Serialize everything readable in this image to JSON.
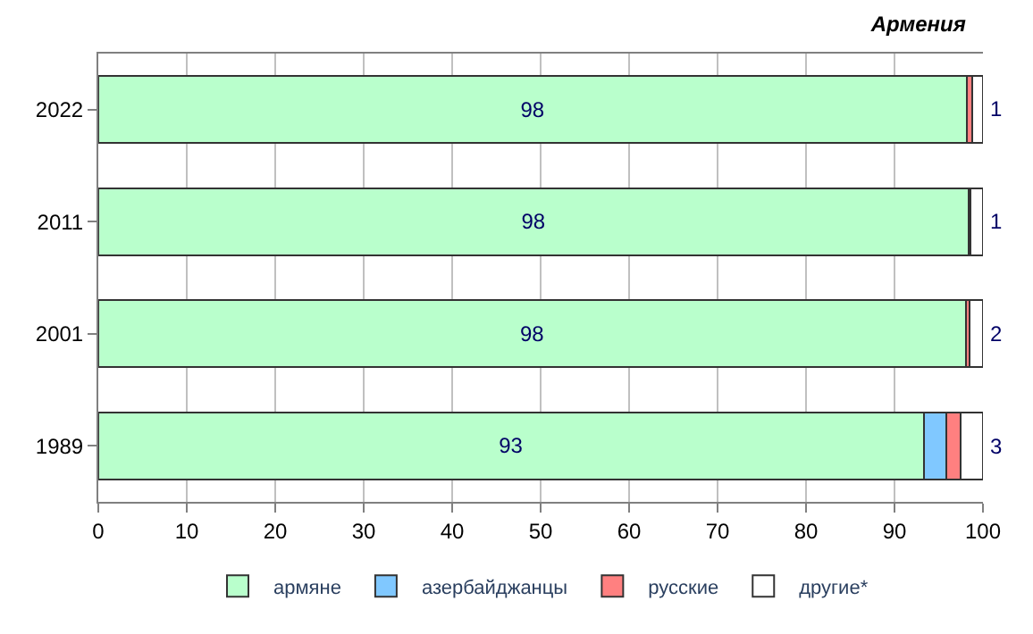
{
  "chart_data": {
    "type": "bar",
    "orientation": "horizontal",
    "stacked": true,
    "title": "Армения",
    "categories": [
      "2022",
      "2011",
      "2001",
      "1989"
    ],
    "series": [
      {
        "name": "армяне",
        "color": "#b9ffcc",
        "values": [
          98.2,
          98.4,
          98.1,
          93.3
        ],
        "value_labels": [
          "98",
          "98",
          "98",
          "93"
        ]
      },
      {
        "name": "азербайджанцы",
        "color": "#80c8ff",
        "values": [
          0,
          0,
          0,
          2.6
        ],
        "value_labels": [
          null,
          null,
          null,
          null
        ]
      },
      {
        "name": "русские",
        "color": "#ff8080",
        "values": [
          0.6,
          0.2,
          0.4,
          1.6
        ],
        "value_labels": [
          null,
          null,
          null,
          null
        ]
      },
      {
        "name": "другие*",
        "color": "#ffffff",
        "values": [
          1.2,
          1.4,
          1.5,
          2.5
        ],
        "value_labels": [
          "1",
          "1",
          "2",
          "3"
        ]
      }
    ],
    "xlim": [
      0,
      100
    ],
    "xticks": [
      0,
      10,
      20,
      30,
      40,
      50,
      60,
      70,
      80,
      90,
      100
    ],
    "grid": "x",
    "legend": "bottom"
  }
}
